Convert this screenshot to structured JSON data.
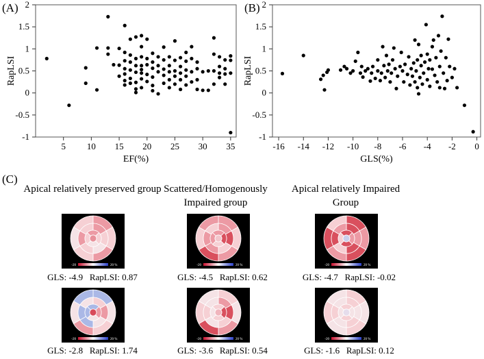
{
  "panels": {
    "a_label": "(A)",
    "b_label": "(B)",
    "c_label": "(C)"
  },
  "chart_data": [
    {
      "type": "scatter",
      "xlabel": "EF(%)",
      "ylabel": "RapLSI",
      "xlim": [
        0,
        36
      ],
      "ylim": [
        -1,
        2
      ],
      "xticks": [
        "5",
        "10",
        "15",
        "20",
        "25",
        "30",
        "35"
      ],
      "yticks": [
        "-1",
        "-0.5",
        "0",
        "0.5",
        "1",
        "1.5",
        "2"
      ],
      "grid": false,
      "points": [
        [
          2,
          0.78
        ],
        [
          6,
          -0.28
        ],
        [
          9,
          0.57
        ],
        [
          9,
          0.22
        ],
        [
          11,
          1.02
        ],
        [
          11,
          0.07
        ],
        [
          13,
          1.73
        ],
        [
          13,
          1.02
        ],
        [
          13,
          0.88
        ],
        [
          14,
          0.64
        ],
        [
          15,
          1.01
        ],
        [
          15,
          0.63
        ],
        [
          15,
          0.38
        ],
        [
          16,
          1.53
        ],
        [
          16,
          0.92
        ],
        [
          16,
          0.73
        ],
        [
          16,
          0.55
        ],
        [
          16,
          0.43
        ],
        [
          16,
          0.28
        ],
        [
          16,
          0.18
        ],
        [
          17,
          1.22
        ],
        [
          17,
          0.86
        ],
        [
          17,
          0.7
        ],
        [
          17,
          0.52
        ],
        [
          17,
          0.33
        ],
        [
          17,
          0.22
        ],
        [
          18,
          1.27
        ],
        [
          18,
          0.78
        ],
        [
          18,
          0.62
        ],
        [
          18,
          0.47
        ],
        [
          18,
          0.24
        ],
        [
          18,
          0.09
        ],
        [
          18,
          0.01
        ],
        [
          19,
          1.3
        ],
        [
          19,
          1.05
        ],
        [
          19,
          0.82
        ],
        [
          19,
          0.62
        ],
        [
          19,
          0.53
        ],
        [
          19,
          0.45
        ],
        [
          19,
          0.32
        ],
        [
          19,
          0.12
        ],
        [
          20,
          1.22
        ],
        [
          20,
          0.78
        ],
        [
          20,
          0.64
        ],
        [
          20,
          0.42
        ],
        [
          20,
          0.26
        ],
        [
          21,
          0.9
        ],
        [
          21,
          0.7
        ],
        [
          21,
          0.56
        ],
        [
          21,
          0.36
        ],
        [
          21,
          0.17
        ],
        [
          21,
          0.05
        ],
        [
          22,
          0.82
        ],
        [
          22,
          0.62
        ],
        [
          22,
          0.48
        ],
        [
          22,
          -0.02
        ],
        [
          23,
          1.04
        ],
        [
          23,
          0.75
        ],
        [
          23,
          0.54
        ],
        [
          23,
          0.4
        ],
        [
          23,
          0.22
        ],
        [
          24,
          0.82
        ],
        [
          24,
          0.62
        ],
        [
          24,
          0.48
        ],
        [
          24,
          0.3
        ],
        [
          24,
          0.12
        ],
        [
          25,
          1.18
        ],
        [
          25,
          0.74
        ],
        [
          25,
          0.5
        ],
        [
          25,
          0.38
        ],
        [
          25,
          0.2
        ],
        [
          26,
          0.8
        ],
        [
          26,
          0.6
        ],
        [
          26,
          0.45
        ],
        [
          26,
          0.3
        ],
        [
          26,
          0.08
        ],
        [
          27,
          0.92
        ],
        [
          27,
          0.72
        ],
        [
          27,
          0.52
        ],
        [
          27,
          0.38
        ],
        [
          27,
          0.18
        ],
        [
          28,
          1.05
        ],
        [
          28,
          0.78
        ],
        [
          28,
          0.48
        ],
        [
          28,
          0.25
        ],
        [
          29,
          0.7
        ],
        [
          29,
          0.55
        ],
        [
          29,
          0.3
        ],
        [
          29,
          0.08
        ],
        [
          30,
          0.48
        ],
        [
          30,
          0.06
        ],
        [
          31,
          0.5
        ],
        [
          31,
          0.06
        ],
        [
          32,
          1.25
        ],
        [
          32,
          0.88
        ],
        [
          32,
          0.5
        ],
        [
          32,
          0.2
        ],
        [
          33,
          0.82
        ],
        [
          33,
          0.6
        ],
        [
          33,
          0.45
        ],
        [
          33,
          0.35
        ],
        [
          34,
          0.75
        ],
        [
          34,
          0.55
        ],
        [
          34,
          0.43
        ],
        [
          34,
          0.2
        ],
        [
          35,
          0.84
        ],
        [
          35,
          0.74
        ],
        [
          35,
          0.45
        ],
        [
          35,
          -0.9
        ]
      ]
    },
    {
      "type": "scatter",
      "xlabel": "GLS(%)",
      "ylabel": "RapLSI",
      "xlim": [
        -16.5,
        0.3
      ],
      "ylim": [
        -1,
        2
      ],
      "xticks": [
        "-16",
        "-14",
        "-12",
        "-10",
        "-8",
        "-6",
        "-4",
        "-2",
        "0"
      ],
      "yticks": [
        "-1",
        "-0.5",
        "0",
        "0.5",
        "1",
        "1.5",
        "2"
      ],
      "grid": false,
      "points": [
        [
          -15.7,
          0.44
        ],
        [
          -14.0,
          0.85
        ],
        [
          -12.6,
          0.31
        ],
        [
          -12.4,
          0.4
        ],
        [
          -12.3,
          0.07
        ],
        [
          -12.1,
          0.47
        ],
        [
          -12.0,
          0.52
        ],
        [
          -11.0,
          0.52
        ],
        [
          -10.7,
          0.6
        ],
        [
          -10.5,
          0.55
        ],
        [
          -10.2,
          0.45
        ],
        [
          -10.0,
          0.5
        ],
        [
          -9.8,
          0.72
        ],
        [
          -9.6,
          0.92
        ],
        [
          -9.4,
          0.45
        ],
        [
          -9.3,
          0.6
        ],
        [
          -9.2,
          0.36
        ],
        [
          -9.0,
          0.5
        ],
        [
          -8.8,
          0.55
        ],
        [
          -8.6,
          0.27
        ],
        [
          -8.5,
          0.45
        ],
        [
          -8.4,
          0.6
        ],
        [
          -8.2,
          0.33
        ],
        [
          -8.0,
          0.5
        ],
        [
          -8.0,
          0.75
        ],
        [
          -7.8,
          0.28
        ],
        [
          -7.7,
          0.45
        ],
        [
          -7.6,
          1.05
        ],
        [
          -7.5,
          0.62
        ],
        [
          -7.4,
          0.35
        ],
        [
          -7.3,
          0.85
        ],
        [
          -7.2,
          0.5
        ],
        [
          -7.1,
          0.65
        ],
        [
          -7.0,
          0.25
        ],
        [
          -6.9,
          0.45
        ],
        [
          -6.8,
          0.75
        ],
        [
          -6.7,
          1.02
        ],
        [
          -6.6,
          0.55
        ],
        [
          -6.5,
          0.1
        ],
        [
          -6.4,
          0.38
        ],
        [
          -6.2,
          0.6
        ],
        [
          -6.1,
          0.92
        ],
        [
          -6.0,
          0.5
        ],
        [
          -5.9,
          0.25
        ],
        [
          -5.8,
          0.65
        ],
        [
          -5.6,
          0.42
        ],
        [
          -5.5,
          0.82
        ],
        [
          -5.4,
          0.18
        ],
        [
          -5.3,
          0.55
        ],
        [
          -5.2,
          0.38
        ],
        [
          -5.1,
          0.68
        ],
        [
          -5.0,
          1.2
        ],
        [
          -5.0,
          0.25
        ],
        [
          -4.9,
          0.5
        ],
        [
          -4.8,
          0.75
        ],
        [
          -4.8,
          0.12
        ],
        [
          -4.7,
          1.1
        ],
        [
          -4.7,
          -0.02
        ],
        [
          -4.6,
          0.35
        ],
        [
          -4.5,
          0.62
        ],
        [
          -4.5,
          0.85
        ],
        [
          -4.4,
          0.2
        ],
        [
          -4.3,
          0.45
        ],
        [
          -4.2,
          0.7
        ],
        [
          -4.1,
          1.55
        ],
        [
          -4.0,
          0.3
        ],
        [
          -4.0,
          0.88
        ],
        [
          -3.9,
          0.55
        ],
        [
          -3.8,
          0.15
        ],
        [
          -3.8,
          0.75
        ],
        [
          -3.6,
          0.54
        ],
        [
          -3.6,
          1.05
        ],
        [
          -3.5,
          1.2
        ],
        [
          -3.4,
          0.4
        ],
        [
          -3.3,
          0.8
        ],
        [
          -3.2,
          0.25
        ],
        [
          -3.1,
          1.3
        ],
        [
          -3.0,
          0.6
        ],
        [
          -3.0,
          0.12
        ],
        [
          -2.9,
          0.95
        ],
        [
          -2.8,
          1.74
        ],
        [
          -2.7,
          0.45
        ],
        [
          -2.6,
          0.1
        ],
        [
          -2.5,
          0.8
        ],
        [
          -2.4,
          0.28
        ],
        [
          -2.3,
          1.22
        ],
        [
          -2.2,
          0.6
        ],
        [
          -2.0,
          0.35
        ],
        [
          -1.8,
          0.55
        ],
        [
          -1.6,
          0.12
        ],
        [
          -1.0,
          -0.28
        ],
        [
          -0.3,
          -0.88
        ]
      ]
    }
  ],
  "groups": [
    {
      "title": "Apical relatively preserved group",
      "maps": [
        {
          "gls": "-4.9",
          "rapLSI": "0.87",
          "caption": "GLS: -4.9   RapLSI: 0.87",
          "scale_min": "-20",
          "scale_max": "20 %",
          "center_color": "#e8909a"
        },
        {
          "gls": "-2.8",
          "rapLSI": "1.74",
          "caption": "GLS: -2.8   RapLSI: 1.74",
          "scale_min": "-20",
          "scale_max": "20 %",
          "center_color": "#d84a5a"
        }
      ]
    },
    {
      "title": "Scattered/Homogenously Impaired group",
      "maps": [
        {
          "gls": "-4.5",
          "rapLSI": "0.62",
          "caption": "GLS: -4.5   RapLSI: 0.62",
          "scale_min": "-20",
          "scale_max": "20 %",
          "center_color": "#f2c6cc"
        },
        {
          "gls": "-3.6",
          "rapLSI": "0.54",
          "caption": "GLS: -3.6   RapLSI: 0.54",
          "scale_min": "-20",
          "scale_max": "20 %",
          "center_color": "#f0b5bd"
        }
      ]
    },
    {
      "title": "Apical relatively Impaired Group",
      "maps": [
        {
          "gls": "-4.7",
          "rapLSI": "-0.02",
          "caption": "GLS: -4.7   RapLSI: -0.02",
          "scale_min": "-20",
          "scale_max": "20 %",
          "center_color": "#c9cfec"
        },
        {
          "gls": "-1.6",
          "rapLSI": "0.12",
          "caption": "GLS: -1.6   RapLSI: 0.12",
          "scale_min": "-20",
          "scale_max": "20 %",
          "center_color": "#e6ddec"
        }
      ]
    }
  ],
  "colors": {
    "marker": "#000000",
    "strong_red": "#d9505e",
    "mid_red": "#ec9aa4",
    "light_red": "#f6d0d4",
    "pale": "#f5e3e6",
    "blue": "#aab8e6"
  }
}
